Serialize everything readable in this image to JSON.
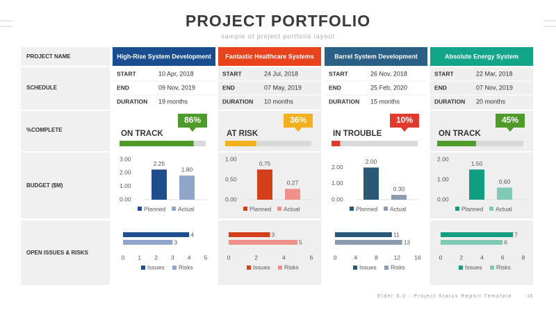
{
  "header": {
    "title": "PROJECT PORTFOLIO",
    "subtitle": "sample of project portfolio layout"
  },
  "row_labels": [
    "PROJECT NAME",
    "SCHEDULE",
    "%COMPLETE",
    "BUDGET ($M)",
    "OPEN ISSUES & RISKS"
  ],
  "schedule_labels": [
    "START",
    "END",
    "DURATION"
  ],
  "projects": [
    {
      "name": "High-Rise System Development",
      "color": "#1a4d8f",
      "start": "10 Apr, 2018",
      "end": "09 Nov, 2019",
      "duration": "19 months",
      "status": "ON TRACK",
      "percent_complete": {
        "value": 86,
        "label": "86%",
        "color": "#4e9a2a"
      }
    },
    {
      "name": "Fantastic Healthcare Systems",
      "color": "#e8431d",
      "start": "24 Jul, 2018",
      "end": "07 May, 2019",
      "duration": "10 months",
      "status": "AT RISK",
      "percent_complete": {
        "value": 36,
        "label": "36%",
        "color": "#f2b01e"
      }
    },
    {
      "name": "Barrel System Development",
      "color": "#2a5f86",
      "start": "26 Nov, 2018",
      "end": "25 Feb, 2020",
      "duration": "15 months",
      "status": "IN TROUBLE",
      "percent_complete": {
        "value": 10,
        "label": "10%",
        "color": "#e03a2f"
      }
    },
    {
      "name": "Absolute Energy System",
      "color": "#12a58a",
      "start": "22 Mar, 2018",
      "end": "07 Nov, 2019",
      "duration": "20 months",
      "status": "ON TRACK",
      "percent_complete": {
        "value": 45,
        "label": "45%",
        "color": "#4e9a2a"
      }
    }
  ],
  "chart_data": [
    {
      "type": "bar",
      "ylim": [
        0,
        3
      ],
      "yticks": [
        {
          "value": 0,
          "label": "0.00"
        },
        {
          "value": 1,
          "label": "1.00"
        },
        {
          "value": 2,
          "label": "2.00"
        },
        {
          "value": 3,
          "label": "3.00"
        }
      ],
      "series": [
        {
          "name": "Planned",
          "color": "#1f4e8c",
          "values": [
            2.25
          ],
          "value_labels": [
            "2.25"
          ]
        },
        {
          "name": "Actual",
          "color": "#8fa5cc",
          "values": [
            1.8
          ],
          "value_labels": [
            "1.80"
          ]
        }
      ]
    },
    {
      "type": "hbar",
      "xlim": [
        0,
        5
      ],
      "xticks": [
        0,
        1,
        2,
        3,
        4,
        5
      ],
      "series": [
        {
          "name": "Issues",
          "color": "#1f4e8c",
          "values": [
            4
          ]
        },
        {
          "name": "Risks",
          "color": "#8fa5cc",
          "values": [
            3
          ]
        }
      ]
    },
    {
      "type": "bar",
      "ylim": [
        0,
        1
      ],
      "yticks": [
        {
          "value": 0,
          "label": "0.00"
        },
        {
          "value": 0.5,
          "label": "0.50"
        },
        {
          "value": 1,
          "label": "1.00"
        }
      ],
      "series": [
        {
          "name": "Planned",
          "color": "#d33f1a",
          "values": [
            0.75
          ]
        },
        {
          "name": "Actual",
          "color": "#f0908a",
          "values": [
            0.27
          ]
        }
      ]
    },
    {
      "type": "hbar",
      "xlim": [
        0,
        6
      ],
      "xticks": [
        0,
        2,
        4,
        6
      ],
      "series": [
        {
          "name": "Issues",
          "color": "#d33f1a",
          "values": [
            3
          ]
        },
        {
          "name": "Risks",
          "color": "#f0908a",
          "values": [
            5
          ]
        }
      ]
    },
    {
      "type": "bar",
      "ylim": [
        0,
        2.5
      ],
      "yticks": [
        {
          "value": 0,
          "label": "0.00"
        },
        {
          "value": 1,
          "label": "1.00"
        },
        {
          "value": 2,
          "label": "2.00"
        }
      ],
      "series": [
        {
          "name": "Planned",
          "color": "#2c5877",
          "values": [
            2
          ],
          "value_labels": [
            "2.00"
          ]
        },
        {
          "name": "Actual",
          "color": "#8a9bb0",
          "values": [
            0.3
          ],
          "value_labels": [
            "0.30"
          ]
        }
      ]
    },
    {
      "type": "hbar",
      "xlim": [
        0,
        16
      ],
      "xticks": [
        0,
        4,
        8,
        12,
        16
      ],
      "series": [
        {
          "name": "Issues",
          "color": "#2c5877",
          "values": [
            11
          ]
        },
        {
          "name": "Risks",
          "color": "#8a9bb0",
          "values": [
            13
          ]
        }
      ]
    },
    {
      "type": "bar",
      "ylim": [
        0,
        2
      ],
      "yticks": [
        {
          "value": 0,
          "label": "0.00"
        },
        {
          "value": 1,
          "label": "1.00"
        },
        {
          "value": 2,
          "label": "2.00"
        }
      ],
      "series": [
        {
          "name": "Planned",
          "color": "#0f9e80",
          "values": [
            1.5
          ],
          "value_labels": [
            "1.50"
          ]
        },
        {
          "name": "Actual",
          "color": "#80c9b5",
          "values": [
            0.6
          ],
          "value_labels": [
            "0.60"
          ]
        }
      ]
    },
    {
      "type": "hbar",
      "xlim": [
        0,
        8
      ],
      "xticks": [
        0,
        2,
        4,
        6,
        8
      ],
      "series": [
        {
          "name": "Issues",
          "color": "#0f9e80",
          "values": [
            7
          ]
        },
        {
          "name": "Risks",
          "color": "#80c9b5",
          "values": [
            6
          ]
        }
      ]
    }
  ],
  "footer": {
    "text": "Elder 3.0 - Project Status Report Template",
    "page": "13"
  }
}
